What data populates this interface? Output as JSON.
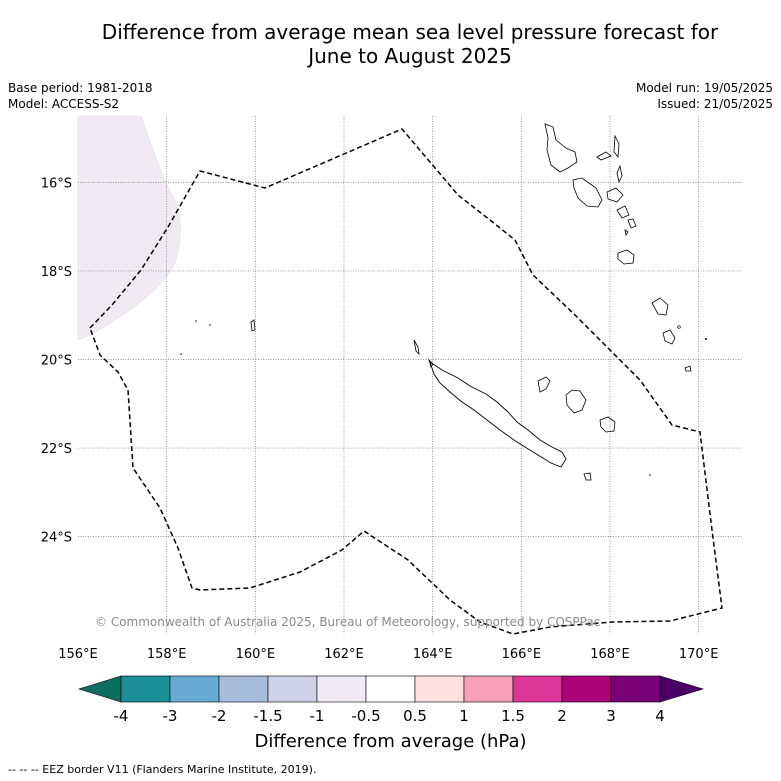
{
  "title_line1": "Difference from average mean sea level pressure forecast for",
  "title_line2": "June to August 2025",
  "base_period": "Base period: 1981-2018",
  "model": "Model: ACCESS-S2",
  "model_run": "Model run: 19/05/2025",
  "issued": "Issued: 21/05/2025",
  "map": {
    "lon_range": [
      156,
      171
    ],
    "lat_range": [
      -26.2,
      -14.5
    ],
    "lon_ticks": [
      "156°E",
      "158°E",
      "160°E",
      "162°E",
      "164°E",
      "166°E",
      "168°E",
      "170°E"
    ],
    "lat_ticks": [
      "16°S",
      "18°S",
      "20°S",
      "22°S",
      "24°S"
    ],
    "gridlines": "dotted",
    "copyright": "© Commonwealth of Australia 2025, Bureau of Meteorology, supported by COSPPac",
    "anomaly_color": "#f0eaf2"
  },
  "colorbar": {
    "label": "Difference from average (hPa)",
    "ticks": [
      "-4",
      "-3",
      "-2",
      "-1.5",
      "-1",
      "-0.5",
      "0.5",
      "1",
      "1.5",
      "2",
      "3",
      "4"
    ],
    "colors": [
      "#1b9098",
      "#67aad2",
      "#a8bcdc",
      "#cfd1e6",
      "#f0eaf2",
      "#ffffff",
      "#ffdfdf",
      "#f7a0bb",
      "#de3599",
      "#aa0478",
      "#7b0078"
    ],
    "under_color": "#0d6e62",
    "over_color": "#4b0068"
  },
  "footnote": "-- -- -- EEZ border V11 (Flanders Marine Institute, 2019)."
}
